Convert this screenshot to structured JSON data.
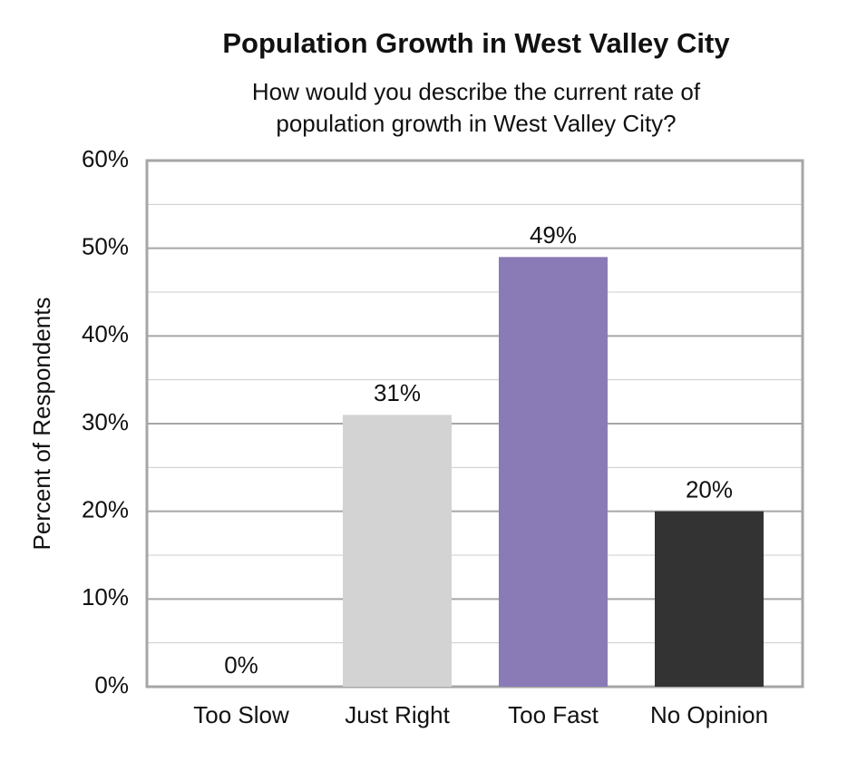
{
  "chart_data": {
    "type": "bar",
    "title": "Population Growth in West Valley City",
    "subtitle": [
      "How would you describe the current rate of",
      "population growth in West Valley City?"
    ],
    "y_label": "Percent of Respondents",
    "categories": [
      "Too Slow",
      "Just Right",
      "Too Fast",
      "No Opinion"
    ],
    "values": [
      0,
      31,
      49,
      20
    ],
    "value_labels": [
      "0%",
      "31%",
      "49%",
      "20%"
    ],
    "colors": [
      "#d3d3d3",
      "#d3d3d3",
      "#8a7bb6",
      "#333333"
    ],
    "ylim": [
      0,
      60
    ],
    "yticks": [
      {
        "value": 0,
        "label": "0%"
      },
      {
        "value": 10,
        "label": "10%"
      },
      {
        "value": 20,
        "label": "20%"
      },
      {
        "value": 30,
        "label": "30%"
      },
      {
        "value": 40,
        "label": "40%"
      },
      {
        "value": 50,
        "label": "50%"
      },
      {
        "value": 60,
        "label": "60%"
      }
    ],
    "yminorticks": [
      5,
      15,
      25,
      35,
      45,
      55
    ],
    "grid": true
  }
}
